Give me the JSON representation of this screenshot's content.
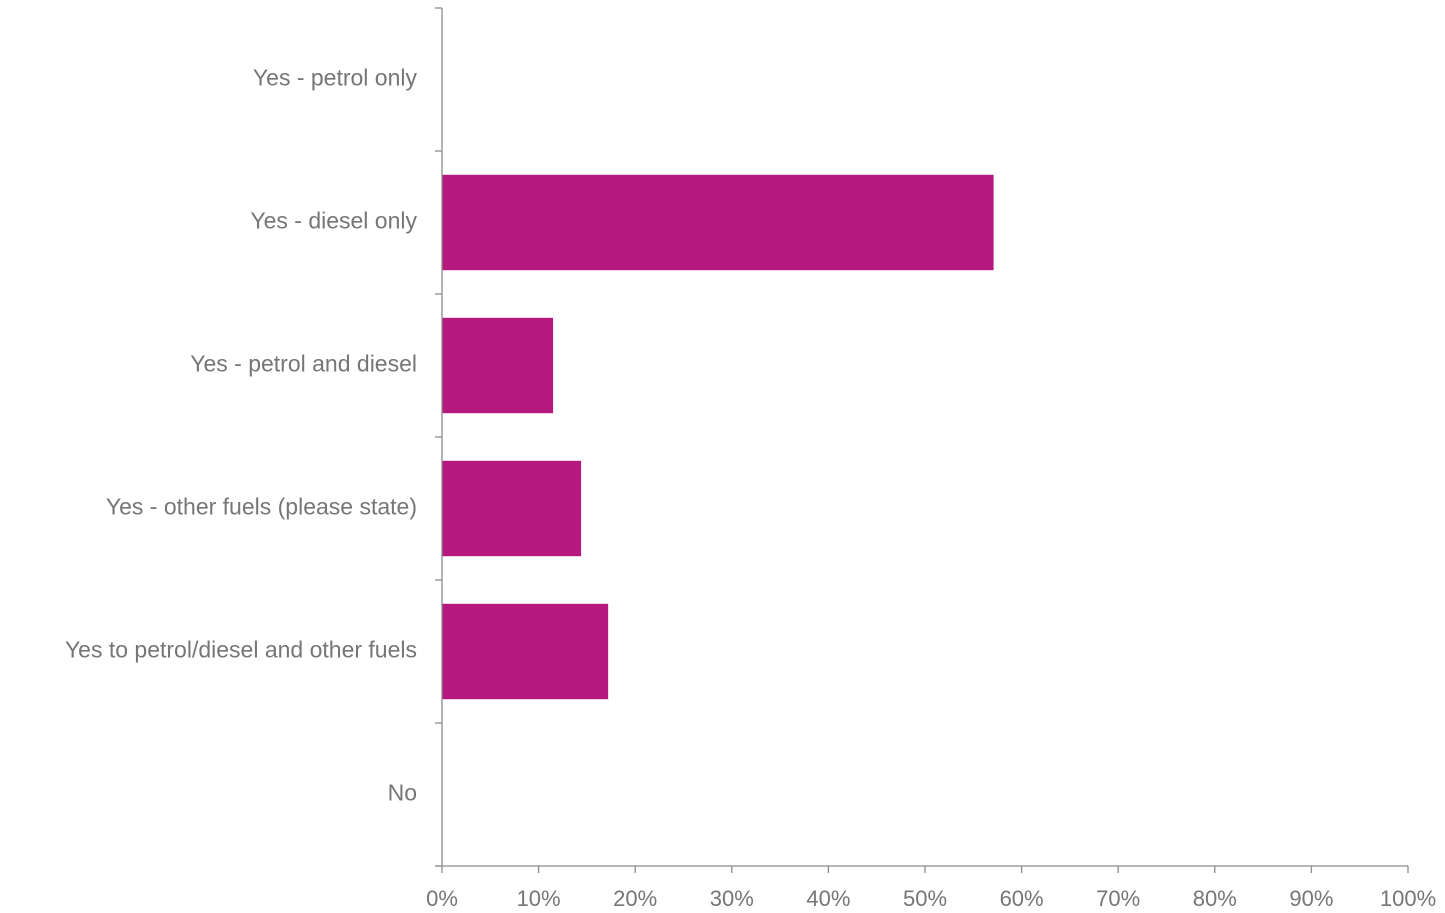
{
  "chart_data": {
    "type": "bar",
    "orientation": "horizontal",
    "title": "",
    "xlabel": "",
    "ylabel": "",
    "categories": [
      "Yes - petrol only",
      "Yes - diesel only",
      "Yes - petrol and diesel",
      "Yes - other fuels (please state)",
      "Yes to petrol/diesel and other fuels",
      "No"
    ],
    "values": [
      0,
      57.1,
      11.5,
      14.4,
      17.2,
      0
    ],
    "xlim": [
      0,
      100
    ],
    "x_ticks": [
      "0%",
      "10%",
      "20%",
      "30%",
      "40%",
      "50%",
      "60%",
      "70%",
      "80%",
      "90%",
      "100%"
    ],
    "grid": false,
    "legend": "none",
    "bar_color": "#B5197E"
  }
}
